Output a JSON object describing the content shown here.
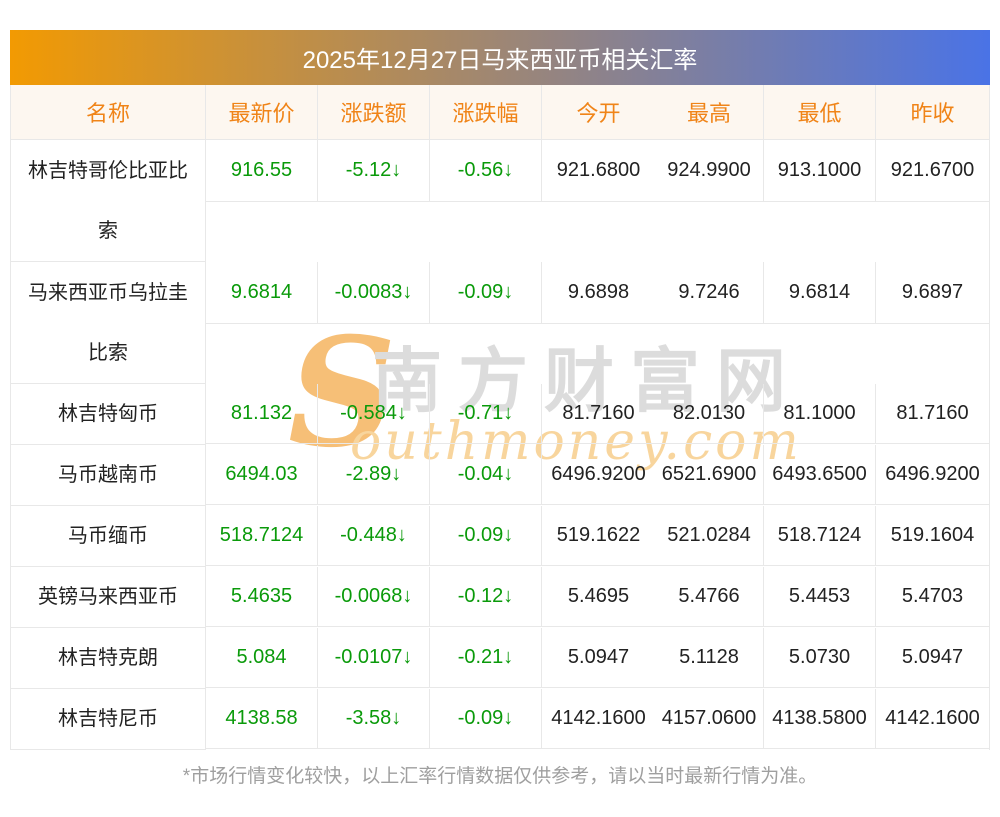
{
  "title": "2025年12月27日马来西亚币相关汇率",
  "table": {
    "columns": [
      "名称",
      "最新价",
      "涨跌额",
      "涨跌幅",
      "今开",
      "最高",
      "最低",
      "昨收"
    ],
    "rows": [
      {
        "tall": true,
        "cells": [
          "林吉特哥伦比亚比索",
          "916.55",
          "-5.12↓",
          "-0.56↓",
          "921.6800",
          "924.9900",
          "913.1000",
          "921.6700"
        ]
      },
      {
        "tall": true,
        "cells": [
          "马来西亚币乌拉圭比索",
          "9.6814",
          "-0.0083↓",
          "-0.09↓",
          "9.6898",
          "9.7246",
          "9.6814",
          "9.6897"
        ]
      },
      {
        "tall": false,
        "cells": [
          "林吉特匈币",
          "81.132",
          "-0.584↓",
          "-0.71↓",
          "81.7160",
          "82.0130",
          "81.1000",
          "81.7160"
        ]
      },
      {
        "tall": false,
        "cells": [
          "马币越南币",
          "6494.03",
          "-2.89↓",
          "-0.04↓",
          "6496.9200",
          "6521.6900",
          "6493.6500",
          "6496.9200"
        ]
      },
      {
        "tall": false,
        "cells": [
          "马币缅币",
          "518.7124",
          "-0.448↓",
          "-0.09↓",
          "519.1622",
          "521.0284",
          "518.7124",
          "519.1604"
        ]
      },
      {
        "tall": false,
        "cells": [
          "英镑马来西亚币",
          "5.4635",
          "-0.0068↓",
          "-0.12↓",
          "5.4695",
          "5.4766",
          "5.4453",
          "5.4703"
        ]
      },
      {
        "tall": false,
        "cells": [
          "林吉特克朗",
          "5.084",
          "-0.0107↓",
          "-0.21↓",
          "5.0947",
          "5.1128",
          "5.0730",
          "5.0947"
        ]
      },
      {
        "tall": false,
        "cells": [
          "林吉特尼币",
          "4138.58",
          "-3.58↓",
          "-0.09↓",
          "4142.1600",
          "4157.0600",
          "4138.5800",
          "4142.1600"
        ]
      }
    ]
  },
  "watermark": {
    "s": "S",
    "cn": "南方财富网",
    "en": "outhmoney.com"
  },
  "footer": "*市场行情变化较快，以上汇率行情数据仅供参考，请以当时最新行情为准。",
  "colors": {
    "gradient_left": "#f29a02",
    "gradient_right": "#4a73e6",
    "title_text": "#ffffff",
    "column_header_text": "#f08418",
    "column_header_bg": "#fdf7f0",
    "down_green": "#0a9a0a",
    "body_text": "#222222",
    "footer_text": "#9f9f9f",
    "border": "#e8e8e8",
    "watermark_gray": "#dcdcdc",
    "watermark_orange": "#f6bf77",
    "watermark_light_orange": "#f8d59d"
  }
}
